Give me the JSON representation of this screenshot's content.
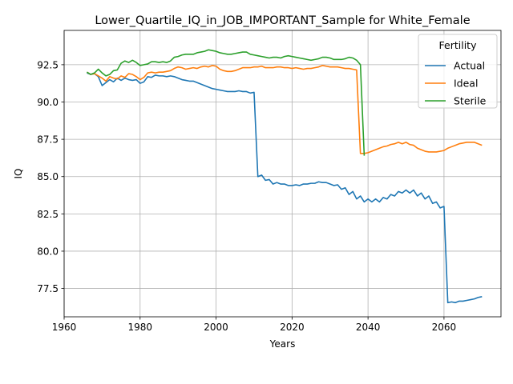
{
  "chart_data": {
    "type": "line",
    "title": "Lower_Quartile_IQ_in_JOB_IMPORTANT_Sample for White_Female",
    "xlabel": "Years",
    "ylabel": "IQ",
    "xlim": [
      1960,
      2075
    ],
    "ylim": [
      75.6,
      94.8
    ],
    "xticks": [
      1960,
      1980,
      2000,
      2020,
      2040,
      2060
    ],
    "yticks": [
      77.5,
      80.0,
      82.5,
      85.0,
      87.5,
      90.0,
      92.5
    ],
    "grid": true,
    "legend": {
      "title": "Fertility",
      "placement": "top-right"
    },
    "series": [
      {
        "name": "Actual",
        "color": "#1f77b4",
        "x": [
          1966,
          1967,
          1968,
          1969,
          1970,
          1971,
          1972,
          1973,
          1974,
          1975,
          1976,
          1977,
          1978,
          1979,
          1980,
          1981,
          1982,
          1983,
          1984,
          1985,
          1986,
          1987,
          1988,
          1989,
          1990,
          1991,
          1992,
          1993,
          1994,
          1995,
          1996,
          1997,
          1998,
          1999,
          2000,
          2001,
          2002,
          2003,
          2004,
          2005,
          2006,
          2007,
          2008,
          2009,
          2010,
          2011,
          2012,
          2013,
          2014,
          2015,
          2016,
          2017,
          2018,
          2019,
          2020,
          2021,
          2022,
          2023,
          2024,
          2025,
          2026,
          2027,
          2028,
          2029,
          2030,
          2031,
          2032,
          2033,
          2034,
          2035,
          2036,
          2037,
          2038,
          2039,
          2040,
          2041,
          2042,
          2043,
          2044,
          2045,
          2046,
          2047,
          2048,
          2049,
          2050,
          2051,
          2052,
          2053,
          2054,
          2055,
          2056,
          2057,
          2058,
          2059,
          2060,
          2061,
          2062,
          2063,
          2064,
          2065,
          2066,
          2067,
          2068,
          2069,
          2070
        ],
        "values": [
          91.95,
          91.85,
          91.9,
          91.7,
          91.1,
          91.3,
          91.5,
          91.35,
          91.6,
          91.45,
          91.6,
          91.5,
          91.45,
          91.5,
          91.25,
          91.35,
          91.7,
          91.65,
          91.8,
          91.75,
          91.75,
          91.7,
          91.75,
          91.7,
          91.6,
          91.5,
          91.45,
          91.4,
          91.4,
          91.3,
          91.2,
          91.1,
          91.0,
          90.9,
          90.85,
          90.8,
          90.75,
          90.7,
          90.7,
          90.7,
          90.75,
          90.7,
          90.7,
          90.6,
          90.65,
          85.0,
          85.1,
          84.75,
          84.8,
          84.5,
          84.6,
          84.5,
          84.5,
          84.4,
          84.4,
          84.45,
          84.4,
          84.5,
          84.5,
          84.55,
          84.55,
          84.65,
          84.6,
          84.6,
          84.5,
          84.4,
          84.45,
          84.15,
          84.25,
          83.8,
          84.0,
          83.5,
          83.7,
          83.3,
          83.5,
          83.3,
          83.5,
          83.3,
          83.6,
          83.5,
          83.8,
          83.7,
          84.0,
          83.9,
          84.1,
          83.9,
          84.1,
          83.7,
          83.9,
          83.5,
          83.7,
          83.2,
          83.3,
          82.9,
          83.0,
          76.55,
          76.6,
          76.55,
          76.65,
          76.65,
          76.7,
          76.75,
          76.8,
          76.9,
          76.95
        ]
      },
      {
        "name": "Ideal",
        "color": "#ff7f0e",
        "x": [
          1966,
          1967,
          1968,
          1969,
          1970,
          1971,
          1972,
          1973,
          1974,
          1975,
          1976,
          1977,
          1978,
          1979,
          1980,
          1981,
          1982,
          1983,
          1984,
          1985,
          1986,
          1987,
          1988,
          1989,
          1990,
          1991,
          1992,
          1993,
          1994,
          1995,
          1996,
          1997,
          1998,
          1999,
          2000,
          2001,
          2002,
          2003,
          2004,
          2005,
          2006,
          2007,
          2008,
          2009,
          2010,
          2011,
          2012,
          2013,
          2014,
          2015,
          2016,
          2017,
          2018,
          2019,
          2020,
          2021,
          2022,
          2023,
          2024,
          2025,
          2026,
          2027,
          2028,
          2029,
          2030,
          2031,
          2032,
          2033,
          2034,
          2035,
          2036,
          2037,
          2038,
          2039,
          2040,
          2041,
          2042,
          2043,
          2044,
          2045,
          2046,
          2047,
          2048,
          2049,
          2050,
          2051,
          2052,
          2053,
          2054,
          2055,
          2056,
          2057,
          2058,
          2059,
          2060,
          2061,
          2062,
          2063,
          2064,
          2065,
          2066,
          2067,
          2068,
          2069,
          2070
        ],
        "values": [
          92.0,
          91.85,
          91.9,
          91.75,
          91.6,
          91.4,
          91.7,
          91.6,
          91.55,
          91.75,
          91.65,
          91.9,
          91.85,
          91.7,
          91.5,
          91.65,
          91.95,
          92.0,
          91.95,
          92.0,
          92.0,
          92.05,
          92.1,
          92.25,
          92.35,
          92.3,
          92.2,
          92.25,
          92.3,
          92.25,
          92.35,
          92.4,
          92.35,
          92.45,
          92.4,
          92.2,
          92.1,
          92.05,
          92.05,
          92.1,
          92.2,
          92.3,
          92.3,
          92.3,
          92.35,
          92.35,
          92.4,
          92.3,
          92.3,
          92.3,
          92.35,
          92.35,
          92.3,
          92.3,
          92.25,
          92.3,
          92.25,
          92.2,
          92.25,
          92.25,
          92.3,
          92.35,
          92.45,
          92.4,
          92.35,
          92.35,
          92.35,
          92.3,
          92.25,
          92.25,
          92.2,
          92.15,
          86.55,
          86.55,
          86.6,
          86.7,
          86.8,
          86.9,
          87.0,
          87.05,
          87.15,
          87.2,
          87.3,
          87.2,
          87.3,
          87.15,
          87.1,
          86.9,
          86.8,
          86.7,
          86.65,
          86.65,
          86.65,
          86.7,
          86.75,
          86.9,
          87.0,
          87.1,
          87.2,
          87.25,
          87.3,
          87.3,
          87.3,
          87.2,
          87.1
        ]
      },
      {
        "name": "Sterile",
        "color": "#2ca02c",
        "x": [
          1966,
          1967,
          1968,
          1969,
          1970,
          1971,
          1972,
          1973,
          1974,
          1975,
          1976,
          1977,
          1978,
          1979,
          1980,
          1981,
          1982,
          1983,
          1984,
          1985,
          1986,
          1987,
          1988,
          1989,
          1990,
          1991,
          1992,
          1993,
          1994,
          1995,
          1996,
          1997,
          1998,
          1999,
          2000,
          2001,
          2002,
          2003,
          2004,
          2005,
          2006,
          2007,
          2008,
          2009,
          2010,
          2011,
          2012,
          2013,
          2014,
          2015,
          2016,
          2017,
          2018,
          2019,
          2020,
          2021,
          2022,
          2023,
          2024,
          2025,
          2026,
          2027,
          2028,
          2029,
          2030,
          2031,
          2032,
          2033,
          2034,
          2035,
          2036,
          2037,
          2038,
          2039
        ],
        "values": [
          92.0,
          91.85,
          91.95,
          92.2,
          91.95,
          91.75,
          91.85,
          92.1,
          92.15,
          92.6,
          92.75,
          92.65,
          92.8,
          92.65,
          92.45,
          92.5,
          92.55,
          92.7,
          92.7,
          92.65,
          92.7,
          92.65,
          92.75,
          93.0,
          93.05,
          93.15,
          93.2,
          93.2,
          93.2,
          93.3,
          93.35,
          93.4,
          93.5,
          93.45,
          93.4,
          93.3,
          93.25,
          93.2,
          93.2,
          93.25,
          93.3,
          93.35,
          93.35,
          93.2,
          93.15,
          93.1,
          93.05,
          93.0,
          92.95,
          93.0,
          93.0,
          92.95,
          93.05,
          93.1,
          93.05,
          93.0,
          92.95,
          92.9,
          92.85,
          92.8,
          92.85,
          92.9,
          93.0,
          93.0,
          92.95,
          92.85,
          92.85,
          92.85,
          92.9,
          93.0,
          92.95,
          92.8,
          92.5,
          86.4
        ]
      }
    ]
  }
}
